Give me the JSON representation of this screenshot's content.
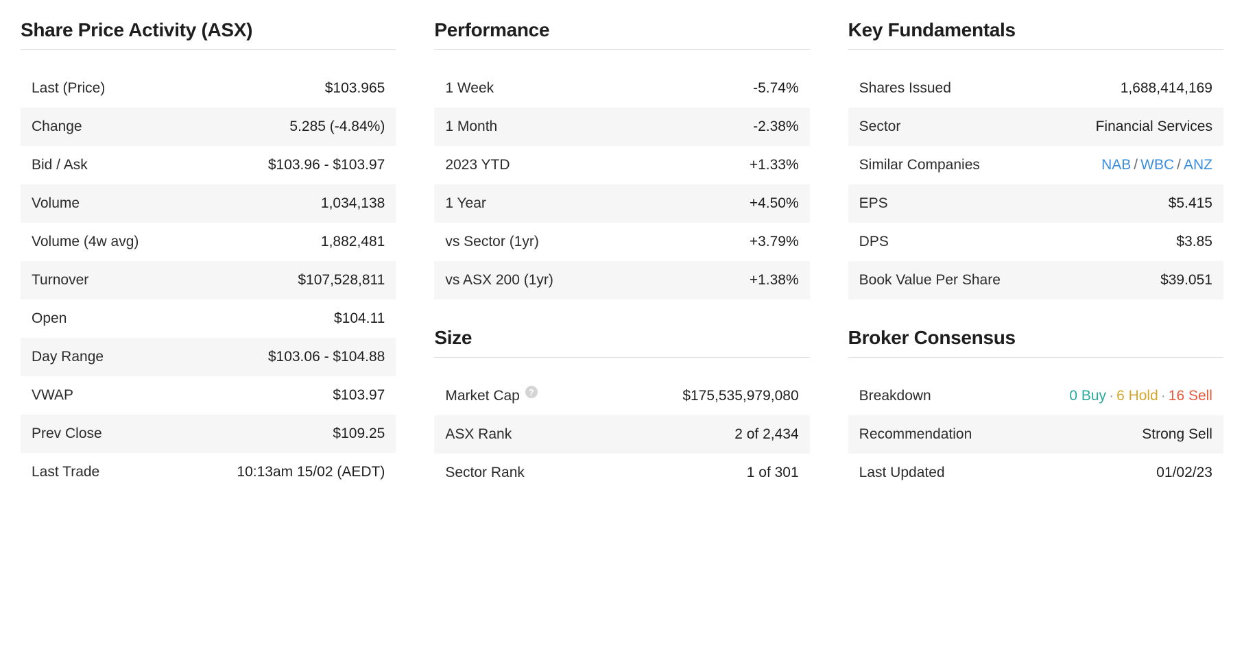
{
  "colors": {
    "negative": "#e55a3c",
    "positive": "#2aa79b",
    "link": "#3b8ede",
    "hold": "#d4a72c",
    "text": "#1e1e1e",
    "row_alt_bg": "#f6f6f6",
    "divider": "#dcdcdc"
  },
  "share_price_activity": {
    "title": "Share Price Activity (ASX)",
    "rows": {
      "last_price": {
        "label": "Last (Price)",
        "value": "$103.965"
      },
      "change": {
        "label": "Change",
        "value": "5.285 (-4.84%)",
        "tone": "neg"
      },
      "bid_ask": {
        "label": "Bid / Ask",
        "value": "$103.96 - $103.97"
      },
      "volume": {
        "label": "Volume",
        "value": "1,034,138"
      },
      "volume_4w": {
        "label": "Volume (4w avg)",
        "value": "1,882,481"
      },
      "turnover": {
        "label": "Turnover",
        "value": "$107,528,811"
      },
      "open": {
        "label": "Open",
        "value": "$104.11"
      },
      "day_range": {
        "label": "Day Range",
        "value": "$103.06 - $104.88"
      },
      "vwap": {
        "label": "VWAP",
        "value": "$103.97"
      },
      "prev_close": {
        "label": "Prev Close",
        "value": "$109.25"
      },
      "last_trade": {
        "label": "Last Trade",
        "value": "10:13am 15/02 (AEDT)"
      }
    }
  },
  "performance": {
    "title": "Performance",
    "rows": {
      "w1": {
        "label": "1 Week",
        "value": "-5.74%",
        "tone": "neg"
      },
      "m1": {
        "label": "1 Month",
        "value": "-2.38%",
        "tone": "neg"
      },
      "ytd": {
        "label": "2023 YTD",
        "value": "+1.33%",
        "tone": "pos"
      },
      "y1": {
        "label": "1 Year",
        "value": "+4.50%",
        "tone": "pos"
      },
      "sector": {
        "label": "vs Sector (1yr)",
        "value": "+3.79%",
        "tone": "pos"
      },
      "asx200": {
        "label": "vs ASX 200 (1yr)",
        "value": "+1.38%",
        "tone": "pos"
      }
    }
  },
  "size": {
    "title": "Size",
    "rows": {
      "market_cap": {
        "label": "Market Cap",
        "value": "$175,535,979,080",
        "help": true
      },
      "asx_rank": {
        "label": "ASX Rank",
        "value": "2 of 2,434"
      },
      "sector_rank": {
        "label": "Sector Rank",
        "value": "1 of 301"
      }
    }
  },
  "key_fundamentals": {
    "title": "Key Fundamentals",
    "rows": {
      "shares_issued": {
        "label": "Shares Issued",
        "value": "1,688,414,169"
      },
      "sector": {
        "label": "Sector",
        "value": "Financial Services"
      },
      "similar": {
        "label": "Similar Companies",
        "links": [
          "NAB",
          "WBC",
          "ANZ"
        ],
        "separator": "/"
      },
      "eps": {
        "label": "EPS",
        "value": "$5.415"
      },
      "dps": {
        "label": "DPS",
        "value": "$3.85"
      },
      "bvps": {
        "label": "Book Value Per Share",
        "value": "$39.051"
      }
    }
  },
  "broker_consensus": {
    "title": "Broker Consensus",
    "rows": {
      "breakdown": {
        "label": "Breakdown",
        "buy": "0 Buy",
        "hold": "6 Hold",
        "sell": "16 Sell",
        "dot": "·"
      },
      "recommendation": {
        "label": "Recommendation",
        "value": "Strong Sell",
        "tone": "neg"
      },
      "last_updated": {
        "label": "Last Updated",
        "value": "01/02/23",
        "tone": "link"
      }
    }
  }
}
